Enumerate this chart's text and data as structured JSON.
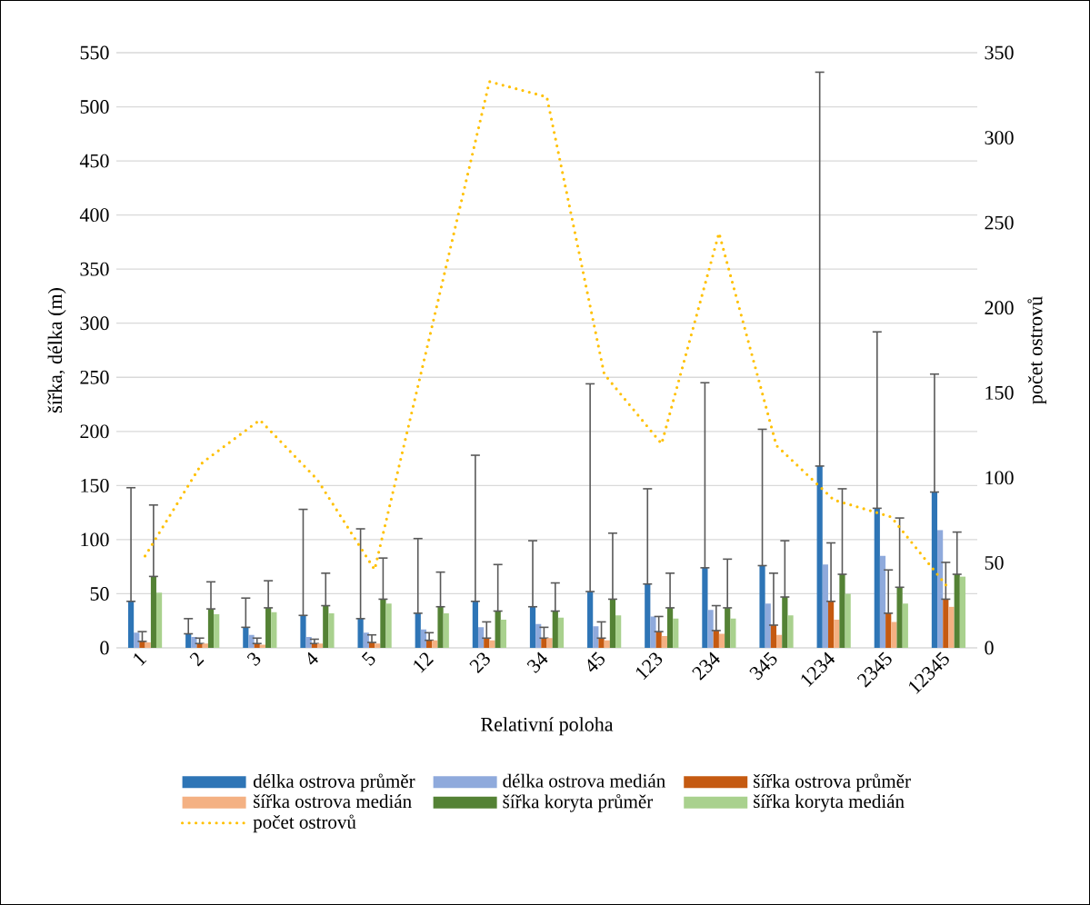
{
  "chart_data": {
    "type": "bar",
    "xlabel": "Relativní poloha",
    "ylabel": "šířka, délka (m)",
    "y2label": "počet ostrovů",
    "categories": [
      "1",
      "2",
      "3",
      "4",
      "5",
      "12",
      "23",
      "34",
      "45",
      "123",
      "234",
      "345",
      "1234",
      "2345",
      "12345"
    ],
    "series": [
      {
        "name": "délka ostrova průměr",
        "color": "#2e75b6",
        "values": [
          43,
          13,
          19,
          30,
          27,
          32,
          43,
          38,
          52,
          59,
          74,
          76,
          168,
          129,
          144
        ],
        "errors": [
          [
            43,
            148
          ],
          [
            13,
            27
          ],
          [
            19,
            46
          ],
          [
            30,
            128
          ],
          [
            27,
            110
          ],
          [
            32,
            101
          ],
          [
            43,
            178
          ],
          [
            38,
            99
          ],
          [
            52,
            244
          ],
          [
            59,
            147
          ],
          [
            74,
            245
          ],
          [
            76,
            202
          ],
          [
            168,
            532
          ],
          [
            129,
            292
          ],
          [
            144,
            253
          ]
        ]
      },
      {
        "name": "délka ostrova medián",
        "color": "#8faadc",
        "values": [
          14,
          10,
          12,
          10,
          14,
          17,
          19,
          22,
          20,
          29,
          35,
          41,
          77,
          85,
          109
        ]
      },
      {
        "name": "šířka ostrova průměr",
        "color": "#c55a11",
        "values": [
          6,
          4,
          4,
          4,
          5,
          7,
          9,
          9,
          9,
          15,
          16,
          21,
          43,
          32,
          45
        ],
        "errors": [
          [
            6,
            15
          ],
          [
            4,
            9
          ],
          [
            4,
            9
          ],
          [
            4,
            8
          ],
          [
            5,
            12
          ],
          [
            7,
            14
          ],
          [
            9,
            24
          ],
          [
            9,
            19
          ],
          [
            9,
            24
          ],
          [
            15,
            29
          ],
          [
            16,
            39
          ],
          [
            21,
            69
          ],
          [
            43,
            97
          ],
          [
            32,
            72
          ],
          [
            45,
            79
          ]
        ]
      },
      {
        "name": "šířka ostrova medián",
        "color": "#f4b183",
        "values": [
          5,
          4,
          3,
          4,
          4,
          7,
          7,
          9,
          7,
          11,
          13,
          12,
          26,
          24,
          38
        ]
      },
      {
        "name": "šířka koryta průměr",
        "color": "#548235",
        "values": [
          66,
          36,
          37,
          39,
          45,
          38,
          34,
          34,
          45,
          37,
          37,
          47,
          68,
          56,
          68
        ],
        "errors": [
          [
            66,
            132
          ],
          [
            36,
            61
          ],
          [
            37,
            62
          ],
          [
            39,
            69
          ],
          [
            45,
            83
          ],
          [
            38,
            70
          ],
          [
            34,
            77
          ],
          [
            34,
            60
          ],
          [
            45,
            106
          ],
          [
            37,
            69
          ],
          [
            37,
            82
          ],
          [
            47,
            99
          ],
          [
            68,
            147
          ],
          [
            56,
            120
          ],
          [
            68,
            107
          ]
        ]
      },
      {
        "name": "šířka koryta medián",
        "color": "#a9d18e",
        "values": [
          51,
          31,
          33,
          32,
          41,
          32,
          26,
          28,
          30,
          27,
          27,
          30,
          50,
          41,
          66
        ]
      },
      {
        "name": "počet ostrovů",
        "color": "#ffc000",
        "type": "line",
        "axis": "y2",
        "line_style": "dotted",
        "values": [
          54,
          109,
          134,
          99,
          46,
          189,
          333,
          324,
          161,
          120,
          244,
          119,
          87,
          77,
          35
        ]
      }
    ],
    "ylim": [
      0,
      550
    ],
    "yticks": [
      0,
      50,
      100,
      150,
      200,
      250,
      300,
      350,
      400,
      450,
      500,
      550
    ],
    "y2lim": [
      0,
      350
    ],
    "y2ticks": [
      0,
      50,
      100,
      150,
      200,
      250,
      300,
      350
    ],
    "grid": "y",
    "legend": "bottom"
  }
}
